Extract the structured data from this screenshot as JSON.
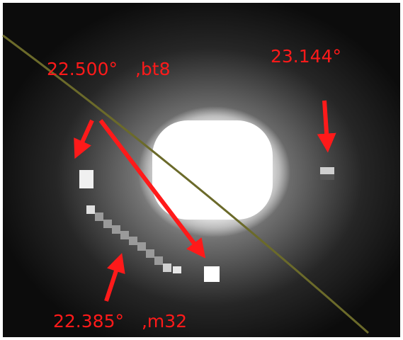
{
  "annotations": [
    {
      "label": "22.500°　,bt8"
    },
    {
      "label": "23.144°"
    },
    {
      "label": "22.385°　,m32"
    }
  ]
}
